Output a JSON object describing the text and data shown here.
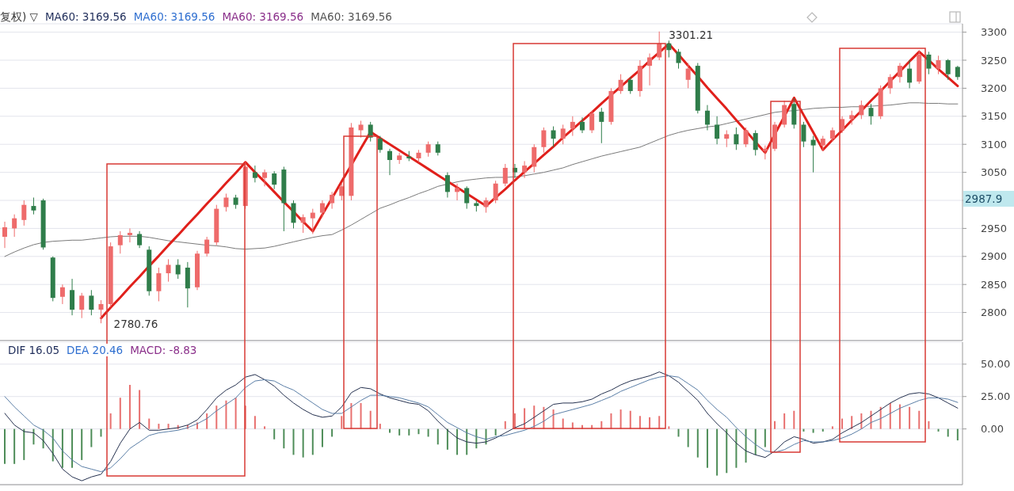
{
  "chart_data": [
    {
      "type": "candlestick",
      "categories": [
        null,
        null,
        null,
        null,
        null,
        null,
        null,
        null,
        null,
        null,
        null,
        null,
        null,
        null,
        null,
        null,
        null,
        null,
        null,
        null,
        null,
        null,
        null,
        null,
        null,
        null,
        null,
        null,
        null,
        null,
        null,
        null,
        null,
        null,
        null,
        null,
        null,
        null,
        null,
        null,
        null,
        null,
        null,
        null,
        null,
        null,
        null,
        null,
        null,
        null,
        null,
        null,
        null,
        null,
        null,
        null,
        null,
        null,
        null,
        null,
        null,
        null,
        null,
        null,
        null,
        null,
        null,
        null,
        null,
        null,
        null,
        null,
        null,
        null,
        null,
        null,
        null,
        null,
        null,
        null,
        null,
        null,
        null,
        null,
        null,
        null,
        null,
        null,
        null,
        null,
        null,
        null,
        null,
        null,
        null,
        null,
        null,
        null,
        null,
        null
      ],
      "ohlc": [
        [
          2935,
          2962,
          2915,
          2952
        ],
        [
          2950,
          2975,
          2935,
          2968
        ],
        [
          2965,
          3000,
          2955,
          2992
        ],
        [
          2990,
          3005,
          2975,
          2982
        ],
        [
          3000,
          3003,
          2912,
          2916
        ],
        [
          2898,
          2900,
          2820,
          2826
        ],
        [
          2828,
          2850,
          2815,
          2845
        ],
        [
          2840,
          2860,
          2795,
          2805
        ],
        [
          2805,
          2835,
          2790,
          2830
        ],
        [
          2830,
          2840,
          2795,
          2805
        ],
        [
          2805,
          2822,
          2780.76,
          2815
        ],
        [
          2815,
          2925,
          2810,
          2918
        ],
        [
          2920,
          2945,
          2905,
          2938
        ],
        [
          2938,
          2950,
          2925,
          2942
        ],
        [
          2940,
          2945,
          2915,
          2920
        ],
        [
          2912,
          2918,
          2830,
          2838
        ],
        [
          2838,
          2880,
          2820,
          2870
        ],
        [
          2870,
          2895,
          2855,
          2885
        ],
        [
          2885,
          2895,
          2860,
          2868
        ],
        [
          2880,
          2890,
          2809,
          2843
        ],
        [
          2845,
          2910,
          2840,
          2905
        ],
        [
          2905,
          2935,
          2900,
          2930
        ],
        [
          2925,
          2992,
          2920,
          2985
        ],
        [
          2988,
          3012,
          2980,
          3005
        ],
        [
          3005,
          3010,
          2985,
          2992
        ],
        [
          2990,
          3068,
          2985,
          3060
        ],
        [
          3050,
          3062,
          3032,
          3040
        ],
        [
          3040,
          3055,
          3025,
          3050
        ],
        [
          3048,
          3052,
          3020,
          3028
        ],
        [
          3055,
          3060,
          2945,
          2995
        ],
        [
          2995,
          3000,
          2950,
          2960
        ],
        [
          2960,
          2975,
          2942,
          2970
        ],
        [
          2968,
          2985,
          2940,
          2978
        ],
        [
          2978,
          3000,
          2970,
          2995
        ],
        [
          2995,
          3015,
          2985,
          3010
        ],
        [
          3008,
          3030,
          3000,
          3025
        ],
        [
          3008,
          3138,
          3000,
          3130
        ],
        [
          3125,
          3142,
          3112,
          3135
        ],
        [
          3135,
          3140,
          3105,
          3112
        ],
        [
          3110,
          3115,
          3085,
          3090
        ],
        [
          3088,
          3092,
          3045,
          3072
        ],
        [
          3072,
          3085,
          3065,
          3080
        ],
        [
          3078,
          3088,
          3070,
          3075
        ],
        [
          3075,
          3090,
          3068,
          3085
        ],
        [
          3085,
          3105,
          3078,
          3100
        ],
        [
          3100,
          3105,
          3080,
          3085
        ],
        [
          3045,
          3050,
          3005,
          3015
        ],
        [
          3015,
          3030,
          3000,
          3022
        ],
        [
          3022,
          3025,
          2985,
          2995
        ],
        [
          2995,
          3000,
          2980,
          2990
        ],
        [
          2988,
          3005,
          2978,
          3000
        ],
        [
          3000,
          3035,
          2995,
          3030
        ],
        [
          3030,
          3065,
          3025,
          3058
        ],
        [
          3058,
          3065,
          3040,
          3050
        ],
        [
          3050,
          3070,
          3040,
          3062
        ],
        [
          3060,
          3100,
          3050,
          3095
        ],
        [
          3095,
          3130,
          3085,
          3125
        ],
        [
          3125,
          3132,
          3095,
          3110
        ],
        [
          3110,
          3135,
          3100,
          3128
        ],
        [
          3128,
          3150,
          3115,
          3140
        ],
        [
          3140,
          3148,
          3120,
          3125
        ],
        [
          3125,
          3160,
          3120,
          3155
        ],
        [
          3158,
          3165,
          3102,
          3140
        ],
        [
          3140,
          3200,
          3135,
          3195
        ],
        [
          3195,
          3225,
          3190,
          3215
        ],
        [
          3215,
          3220,
          3190,
          3195
        ],
        [
          3195,
          3250,
          3185,
          3240
        ],
        [
          3240,
          3262,
          3205,
          3255
        ],
        [
          3255,
          3301.21,
          3250,
          3280
        ],
        [
          3280,
          3285,
          3255,
          3268
        ],
        [
          3265,
          3270,
          3235,
          3245
        ],
        [
          3215,
          3245,
          3200,
          3235
        ],
        [
          3240,
          3245,
          3155,
          3160
        ],
        [
          3160,
          3170,
          3125,
          3135
        ],
        [
          3135,
          3150,
          3100,
          3110
        ],
        [
          3110,
          3125,
          3095,
          3118
        ],
        [
          3118,
          3130,
          3090,
          3100
        ],
        [
          3100,
          3130,
          3095,
          3125
        ],
        [
          3120,
          3125,
          3080,
          3090
        ],
        [
          3088,
          3098,
          3073,
          3092
        ],
        [
          3092,
          3140,
          3088,
          3135
        ],
        [
          3135,
          3178,
          3130,
          3170
        ],
        [
          3172,
          3182,
          3128,
          3135
        ],
        [
          3135,
          3140,
          3095,
          3105
        ],
        [
          3108,
          3115,
          3050,
          3098
        ],
        [
          3098,
          3115,
          3088,
          3110
        ],
        [
          3110,
          3130,
          3105,
          3125
        ],
        [
          3125,
          3150,
          3120,
          3145
        ],
        [
          3145,
          3160,
          3135,
          3152
        ],
        [
          3152,
          3178,
          3145,
          3170
        ],
        [
          3165,
          3172,
          3135,
          3150
        ],
        [
          3150,
          3205,
          3145,
          3200
        ],
        [
          3200,
          3225,
          3190,
          3220
        ],
        [
          3220,
          3245,
          3210,
          3240
        ],
        [
          3235,
          3250,
          3200,
          3210
        ],
        [
          3212,
          3268,
          3208,
          3260
        ],
        [
          3260,
          3265,
          3225,
          3235
        ],
        [
          3235,
          3258,
          3225,
          3250
        ],
        [
          3250,
          3252,
          3215,
          3225
        ],
        [
          3238,
          3240,
          3215,
          3220
        ]
      ],
      "colors": [
        "#ee6b6b",
        "#ee6b6b",
        "#ee6b6b",
        "#2f7d4a",
        "#2f7d4a",
        "#2f7d4a",
        "#ee6b6b",
        "#2f7d4a",
        "#ee6b6b",
        "#2f7d4a",
        "#ee6b6b",
        "#ee6b6b",
        "#ee6b6b",
        "#ee6b6b",
        "#2f7d4a",
        "#2f7d4a",
        "#ee6b6b",
        "#ee6b6b",
        "#2f7d4a",
        "#2f7d4a",
        "#ee6b6b",
        "#ee6b6b",
        "#ee6b6b",
        "#ee6b6b",
        "#2f7d4a",
        "#ee6b6b",
        "#2f7d4a",
        "#ee6b6b",
        "#2f7d4a",
        "#2f7d4a",
        "#2f7d4a",
        "#ee6b6b",
        "#ee6b6b",
        "#ee6b6b",
        "#ee6b6b",
        "#ee6b6b",
        "#ee6b6b",
        "#ee6b6b",
        "#2f7d4a",
        "#2f7d4a",
        "#2f7d4a",
        "#ee6b6b",
        "#2f7d4a",
        "#ee6b6b",
        "#ee6b6b",
        "#2f7d4a",
        "#2f7d4a",
        "#ee6b6b",
        "#2f7d4a",
        "#2f7d4a",
        "#ee6b6b",
        "#ee6b6b",
        "#ee6b6b",
        "#2f7d4a",
        "#ee6b6b",
        "#ee6b6b",
        "#ee6b6b",
        "#2f7d4a",
        "#ee6b6b",
        "#ee6b6b",
        "#2f7d4a",
        "#ee6b6b",
        "#2f7d4a",
        "#ee6b6b",
        "#ee6b6b",
        "#2f7d4a",
        "#ee6b6b",
        "#ee6b6b",
        "#ee6b6b",
        "#2f7d4a",
        "#2f7d4a",
        "#ee6b6b",
        "#2f7d4a",
        "#2f7d4a",
        "#2f7d4a",
        "#ee6b6b",
        "#2f7d4a",
        "#ee6b6b",
        "#2f7d4a",
        "#ee6b6b",
        "#ee6b6b",
        "#ee6b6b",
        "#2f7d4a",
        "#2f7d4a",
        "#2f7d4a",
        "#ee6b6b",
        "#ee6b6b",
        "#ee6b6b",
        "#ee6b6b",
        "#ee6b6b",
        "#2f7d4a",
        "#ee6b6b",
        "#ee6b6b",
        "#ee6b6b",
        "#2f7d4a",
        "#ee6b6b",
        "#2f7d4a",
        "#ee6b6b",
        "#2f7d4a",
        "#2f7d4a"
      ],
      "series": [
        {
          "type": "line",
          "color": "#7a7a7a",
          "values": [
            2900,
            2908,
            2915,
            2921,
            2925,
            2927,
            2928,
            2929,
            2929,
            2931,
            2933,
            2935,
            2936,
            2936,
            2936,
            2934,
            2931,
            2928,
            2926,
            2924,
            2922,
            2920,
            2919,
            2917,
            2914,
            2913,
            2914,
            2915,
            2918,
            2922,
            2926,
            2930,
            2934,
            2937,
            2939,
            2947,
            2956,
            2966,
            2976,
            2986,
            2992,
            2999,
            3005,
            3012,
            3018,
            3025,
            3029,
            3033,
            3036,
            3038,
            3040,
            3041,
            3041,
            3042,
            3044,
            3047,
            3050,
            3054,
            3058,
            3064,
            3069,
            3074,
            3079,
            3083,
            3087,
            3091,
            3095,
            3102,
            3109,
            3116,
            3121,
            3125,
            3128,
            3131,
            3133,
            3137,
            3141,
            3145,
            3149,
            3153,
            3157,
            3159,
            3160,
            3162,
            3164,
            3165,
            3166,
            3166,
            3167,
            3167,
            3168,
            3169,
            3170,
            3172,
            3174,
            3174,
            3173,
            3173,
            3172,
            3172
          ]
        },
        {
          "type": "line",
          "color": "#e0201b",
          "values": [
            null,
            null,
            null,
            null,
            null,
            null,
            null,
            null,
            null,
            null,
            2790,
            2809,
            2827,
            2846,
            2864,
            2883,
            2901,
            2920,
            2938,
            2957,
            2975,
            2994,
            3012,
            3031,
            3049,
            3068,
            3050,
            3033,
            3015,
            2997,
            2980,
            2962,
            2945,
            2975,
            3004,
            3034,
            3063,
            3093,
            3122,
            3111,
            3100,
            3089,
            3078,
            3067,
            3056,
            3045,
            3034,
            3023,
            3012,
            3001,
            2990,
            3005,
            3020,
            3036,
            3051,
            3066,
            3081,
            3096,
            3112,
            3127,
            3142,
            3157,
            3173,
            3188,
            3203,
            3218,
            3233,
            3249,
            3264,
            3279,
            3260,
            3240,
            3221,
            3201,
            3182,
            3163,
            3143,
            3124,
            3104,
            3085,
            3118,
            3150,
            3183,
            3152,
            3121,
            3090,
            3108,
            3125,
            3143,
            3160,
            3178,
            3195,
            3213,
            3230,
            3248,
            3265,
            3250,
            3234,
            3219,
            3204
          ]
        }
      ],
      "ylim": [
        2750,
        3315
      ],
      "yticks": [
        2800,
        2850,
        2900,
        2950,
        {
          "value": 3000,
          "label": null
        },
        3050,
        3100,
        3150,
        3200,
        3250,
        3300
      ],
      "grid": "y",
      "tick_labels": "y",
      "annotations": [
        "复权) ▽",
        "MA60: 3169.56",
        "MA60: 3169.56",
        "MA60: 3169.56",
        "MA60: 3169.56",
        "3301.21",
        "2780.76",
        "2987.9"
      ]
    },
    {
      "type": "bar",
      "categories": [
        null,
        null,
        null,
        null,
        null,
        null,
        null,
        null,
        null,
        null,
        null,
        null,
        null,
        null,
        null,
        null,
        null,
        null,
        null,
        null,
        null,
        null,
        null,
        null,
        null,
        null,
        null,
        null,
        null,
        null,
        null,
        null,
        null,
        null,
        null,
        null,
        null,
        null,
        null,
        null,
        null,
        null,
        null,
        null,
        null,
        null,
        null,
        null,
        null,
        null,
        null,
        null,
        null,
        null,
        null,
        null,
        null,
        null,
        null,
        null,
        null,
        null,
        null,
        null,
        null,
        null,
        null,
        null,
        null,
        null,
        null,
        null,
        null,
        null,
        null,
        null,
        null,
        null,
        null,
        null,
        null,
        null,
        null,
        null,
        null,
        null,
        null,
        null,
        null,
        null,
        null,
        null,
        null,
        null,
        null,
        null,
        null,
        null,
        null,
        null
      ],
      "series": [
        {
          "values": [
            -27,
            -27,
            -24,
            -12,
            -15,
            -25,
            -30,
            -30,
            -24,
            -14,
            -6,
            12,
            24,
            34,
            30,
            8,
            4,
            4,
            3,
            3,
            5,
            12,
            18,
            22,
            24,
            18,
            10,
            2,
            -8,
            -15,
            -20,
            -22,
            -20,
            -14,
            -6,
            10,
            20,
            20,
            14,
            4,
            -3,
            -5,
            -5,
            -4,
            -6,
            -12,
            -16,
            -20,
            -20,
            -15,
            -12,
            -5,
            6,
            12,
            16,
            18,
            17,
            15,
            8,
            5,
            3,
            3,
            6,
            12,
            15,
            14,
            10,
            9,
            10,
            2,
            -6,
            -14,
            -22,
            -30,
            -36,
            -34,
            -30,
            -26,
            -20,
            -14,
            6,
            12,
            14,
            -2,
            -3,
            -2,
            2,
            8,
            10,
            12,
            14,
            17,
            20,
            19,
            17,
            14,
            6,
            -2,
            -6,
            -8.83
          ],
          "colors": [
            "#4e8d58",
            "#4e8d58",
            "#4e8d58",
            "#4e8d58",
            "#4e8d58",
            "#4e8d58",
            "#4e8d58",
            "#4e8d58",
            "#4e8d58",
            "#4e8d58",
            "#4e8d58",
            "#e8706f",
            "#e8706f",
            "#e8706f",
            "#e8706f",
            "#e8706f",
            "#e8706f",
            "#e8706f",
            "#e8706f",
            "#e8706f",
            "#e8706f",
            "#e8706f",
            "#e8706f",
            "#e8706f",
            "#e8706f",
            "#e8706f",
            "#e8706f",
            "#e8706f",
            "#4e8d58",
            "#4e8d58",
            "#4e8d58",
            "#4e8d58",
            "#4e8d58",
            "#4e8d58",
            "#4e8d58",
            "#e8706f",
            "#e8706f",
            "#e8706f",
            "#e8706f",
            "#e8706f",
            "#4e8d58",
            "#4e8d58",
            "#4e8d58",
            "#4e8d58",
            "#4e8d58",
            "#4e8d58",
            "#4e8d58",
            "#4e8d58",
            "#4e8d58",
            "#4e8d58",
            "#4e8d58",
            "#4e8d58",
            "#e8706f",
            "#e8706f",
            "#e8706f",
            "#e8706f",
            "#e8706f",
            "#e8706f",
            "#e8706f",
            "#e8706f",
            "#e8706f",
            "#e8706f",
            "#e8706f",
            "#e8706f",
            "#e8706f",
            "#e8706f",
            "#e8706f",
            "#e8706f",
            "#e8706f",
            "#e8706f",
            "#4e8d58",
            "#4e8d58",
            "#4e8d58",
            "#4e8d58",
            "#4e8d58",
            "#4e8d58",
            "#4e8d58",
            "#4e8d58",
            "#4e8d58",
            "#4e8d58",
            "#e8706f",
            "#e8706f",
            "#e8706f",
            "#4e8d58",
            "#4e8d58",
            "#4e8d58",
            "#e8706f",
            "#e8706f",
            "#e8706f",
            "#e8706f",
            "#e8706f",
            "#e8706f",
            "#e8706f",
            "#e8706f",
            "#e8706f",
            "#e8706f",
            "#e8706f",
            "#4e8d58",
            "#4e8d58",
            "#4e8d58"
          ]
        },
        {
          "type": "line",
          "color": "#25314f",
          "values": [
            12,
            3,
            -2,
            -3,
            -9,
            -19,
            -31,
            -37,
            -40,
            -37,
            -35,
            -25,
            -11,
            0,
            5,
            -1,
            -1,
            0,
            1,
            3,
            7,
            15,
            24,
            30,
            34,
            40,
            42,
            38,
            33,
            26,
            20,
            15,
            11,
            9,
            10,
            17,
            28,
            32,
            31,
            27,
            24,
            22,
            20,
            19,
            14,
            6,
            -1,
            -7,
            -10,
            -11,
            -10,
            -7,
            -3,
            1,
            4,
            9,
            14,
            19,
            20,
            20,
            21,
            23,
            27,
            30,
            34,
            37,
            39,
            41,
            44,
            41,
            36,
            29,
            22,
            12,
            4,
            -3,
            -11,
            -17,
            -20,
            -22,
            -17,
            -10,
            -6,
            -8,
            -11,
            -10,
            -8,
            -3,
            1,
            5,
            10,
            15,
            20,
            24,
            27,
            28,
            27,
            24,
            20,
            16.05
          ]
        },
        {
          "type": "line",
          "color": "#5a7ea6",
          "values": [
            25,
            17,
            10,
            3,
            -1,
            -7,
            -17,
            -24,
            -29,
            -31,
            -33,
            -30,
            -23,
            -15,
            -10,
            -5,
            -3,
            -2,
            -1,
            1,
            4,
            8,
            14,
            19,
            24,
            32,
            37,
            38,
            37,
            33,
            30,
            25,
            20,
            15,
            12,
            12,
            17,
            22,
            26,
            26,
            25,
            24,
            22,
            20,
            17,
            11,
            5,
            1,
            -3,
            -6,
            -8,
            -6,
            -5,
            -3,
            -1,
            2,
            6,
            11,
            13,
            15,
            17,
            19,
            22,
            25,
            29,
            32,
            35,
            38,
            40,
            41,
            40,
            35,
            30,
            22,
            15,
            9,
            1,
            -6,
            -12,
            -17,
            -18,
            -16,
            -12,
            -9,
            -10,
            -10,
            -9,
            -7,
            -4,
            0,
            5,
            8,
            12,
            16,
            19,
            22,
            24,
            24,
            23,
            20.46
          ]
        }
      ],
      "ylim": [
        -43,
        67
      ],
      "yticks": [
        {
          "value": 0,
          "label": "0.00"
        },
        {
          "value": 25,
          "label": "25.00"
        },
        {
          "value": 50,
          "label": "50.00"
        }
      ],
      "grid": "y",
      "tick_labels": "y",
      "annotations": [
        "DIF  16.05",
        "DEA  20.46",
        "MACD: -8.83"
      ]
    }
  ]
}
